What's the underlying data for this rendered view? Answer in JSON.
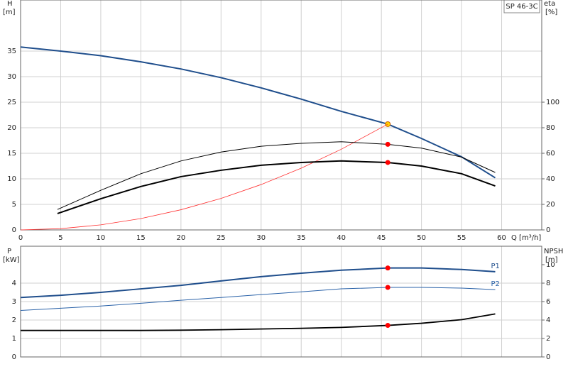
{
  "chart_data": [
    {
      "type": "line",
      "title": "SP 46-3C",
      "xlabel": "Q [m³/h]",
      "ylabel": {
        "name": "H",
        "unit": "[m]"
      },
      "y2label": {
        "name": "eta",
        "unit": "[%]"
      },
      "xlim": [
        0,
        65
      ],
      "xticks": [
        0,
        5,
        10,
        15,
        20,
        25,
        30,
        35,
        40,
        45,
        50,
        55,
        60
      ],
      "ylim": [
        0,
        45
      ],
      "yticks": [
        0,
        5,
        10,
        15,
        20,
        25,
        30,
        35
      ],
      "y2lim": [
        0,
        180
      ],
      "y2ticks": [
        0,
        20,
        40,
        60,
        80,
        100
      ],
      "grid": true,
      "duty_x": 45.8,
      "series": [
        {
          "color": "#1f4e8c",
          "width": 2,
          "axis": "y",
          "x": [
            0,
            5,
            10,
            15,
            20,
            25,
            30,
            35,
            40,
            45.8,
            50,
            55,
            59.2
          ],
          "values": [
            35.8,
            35,
            34.1,
            32.9,
            31.5,
            29.8,
            27.8,
            25.6,
            23.2,
            20.7,
            17.9,
            14.3,
            10.2
          ],
          "duty": 20.7,
          "duty_color": "#ffd700"
        },
        {
          "color": "#ff3030",
          "width": 0.8,
          "axis": "y",
          "x": [
            0,
            5,
            10,
            15,
            20,
            25,
            30,
            35,
            40,
            45.8
          ],
          "values": [
            0,
            0.25,
            0.99,
            2.22,
            3.95,
            6.17,
            8.88,
            12.09,
            15.79,
            20.7
          ]
        },
        {
          "color": "#000000",
          "width": 1,
          "axis": "y2",
          "x": [
            4.6,
            10,
            15,
            20,
            25,
            30,
            35,
            40,
            45.8,
            50,
            55,
            59.2
          ],
          "values": [
            16,
            31,
            44,
            54,
            61,
            65.5,
            67.8,
            69,
            67,
            64,
            57,
            45
          ],
          "duty": 67,
          "duty_color": "#ff0000"
        },
        {
          "color": "#000000",
          "width": 2,
          "axis": "y2",
          "x": [
            4.6,
            10,
            15,
            20,
            25,
            30,
            35,
            40,
            45.8,
            50,
            55,
            59.2
          ],
          "values": [
            12.8,
            24.4,
            34,
            41.7,
            46.7,
            50.6,
            52.8,
            54,
            52.8,
            50,
            44,
            34.4
          ],
          "duty": 52.8,
          "duty_color": "#ff0000"
        }
      ]
    },
    {
      "type": "line",
      "ylabel": {
        "name": "P",
        "unit": "[kW]"
      },
      "y2label": {
        "name": "NPSH",
        "unit": "[m]"
      },
      "xlim": [
        0,
        65
      ],
      "xticks": [
        0,
        5,
        10,
        15,
        20,
        25,
        30,
        35,
        40,
        45,
        50,
        55,
        60
      ],
      "ylim": [
        0,
        6
      ],
      "yticks": [
        0,
        1,
        2,
        3,
        4
      ],
      "y2lim": [
        0,
        12
      ],
      "y2ticks": [
        0,
        2,
        4,
        6,
        8,
        10
      ],
      "grid": true,
      "duty_x": 45.8,
      "series": [
        {
          "name": "P1",
          "color": "#1f4e8c",
          "width": 2,
          "axis": "y",
          "x": [
            0,
            5,
            10,
            15,
            20,
            25,
            30,
            35,
            40,
            45.8,
            50,
            55,
            59.2
          ],
          "values": [
            3.22,
            3.34,
            3.5,
            3.69,
            3.88,
            4.12,
            4.35,
            4.54,
            4.7,
            4.82,
            4.82,
            4.74,
            4.62
          ],
          "duty": 4.82,
          "duty_color": "#ff0000"
        },
        {
          "name": "P2",
          "color": "#2a62a8",
          "width": 1,
          "axis": "y",
          "x": [
            0,
            5,
            10,
            15,
            20,
            25,
            30,
            35,
            40,
            45.8,
            50,
            55,
            59.2
          ],
          "values": [
            2.52,
            2.64,
            2.76,
            2.91,
            3.07,
            3.22,
            3.38,
            3.53,
            3.69,
            3.77,
            3.77,
            3.73,
            3.65
          ],
          "duty": 3.77,
          "duty_color": "#ff0000"
        },
        {
          "color": "#000000",
          "width": 1.8,
          "axis": "y2",
          "x": [
            0,
            5,
            10,
            15,
            20,
            25,
            30,
            35,
            40,
            45.8,
            50,
            55,
            59.2
          ],
          "values": [
            2.87,
            2.87,
            2.87,
            2.87,
            2.9,
            2.95,
            3.03,
            3.1,
            3.2,
            3.42,
            3.65,
            4.04,
            4.66
          ],
          "duty": 3.42,
          "duty_color": "#ff0000"
        }
      ]
    }
  ]
}
